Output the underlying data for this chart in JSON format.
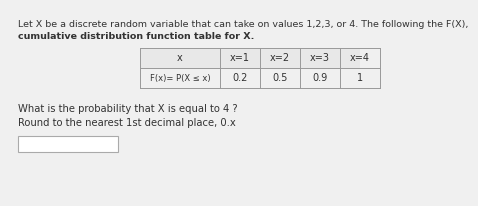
{
  "title_line1": "Let X be a discrete random variable that can take on values 1,2,3, or 4. The following the F(X),",
  "title_line2": "cumulative distribution function table for X.",
  "col_headers": [
    "x",
    "x=1",
    "x=2",
    "x=3",
    "x=4"
  ],
  "row1_label": "F(x)= P(X ≤ x)",
  "row1_values": [
    "0.2",
    "0.5",
    "0.9",
    "1"
  ],
  "question_line1": "What is the probability that X is equal to 4 ?",
  "question_line2": "Round to the nearest 1st decimal place, 0.x",
  "bg_color": "#f0f0f0",
  "table_edge_color": "#999999",
  "text_color": "#333333",
  "title_fontsize": 6.8,
  "table_fontsize": 7.0,
  "question_fontsize": 7.2
}
